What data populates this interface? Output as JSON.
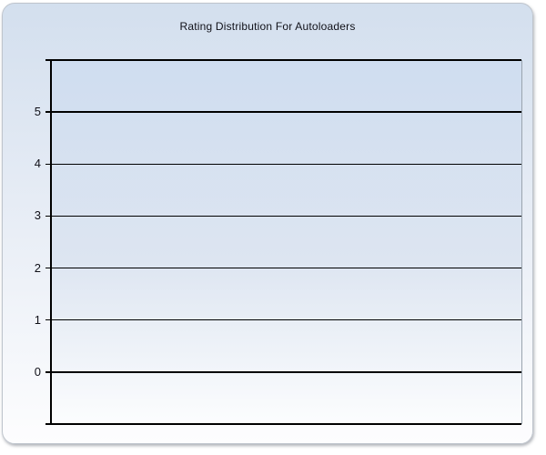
{
  "panel": {
    "title": "Rating Distribution For Autoloaders"
  },
  "chart_data": {
    "type": "bar",
    "title": "Rating Distribution For Autoloaders",
    "categories": [],
    "values": [],
    "xlabel": "",
    "ylabel": "",
    "yticks": [
      0,
      1,
      2,
      3,
      4,
      5
    ],
    "ylim": [
      -1,
      6
    ],
    "grid": true,
    "legend": false
  },
  "colors": {
    "panel_border": "#bfc5cd",
    "panel_bg_top": "#d3dfee",
    "panel_bg_bottom": "#fdfdfe",
    "plot_bg_top": "#cfddf0",
    "plot_bg_bottom": "#fcfdfe",
    "plot_right_border": "#9aa4ae",
    "line": "#000000",
    "title_color": "#101018"
  }
}
